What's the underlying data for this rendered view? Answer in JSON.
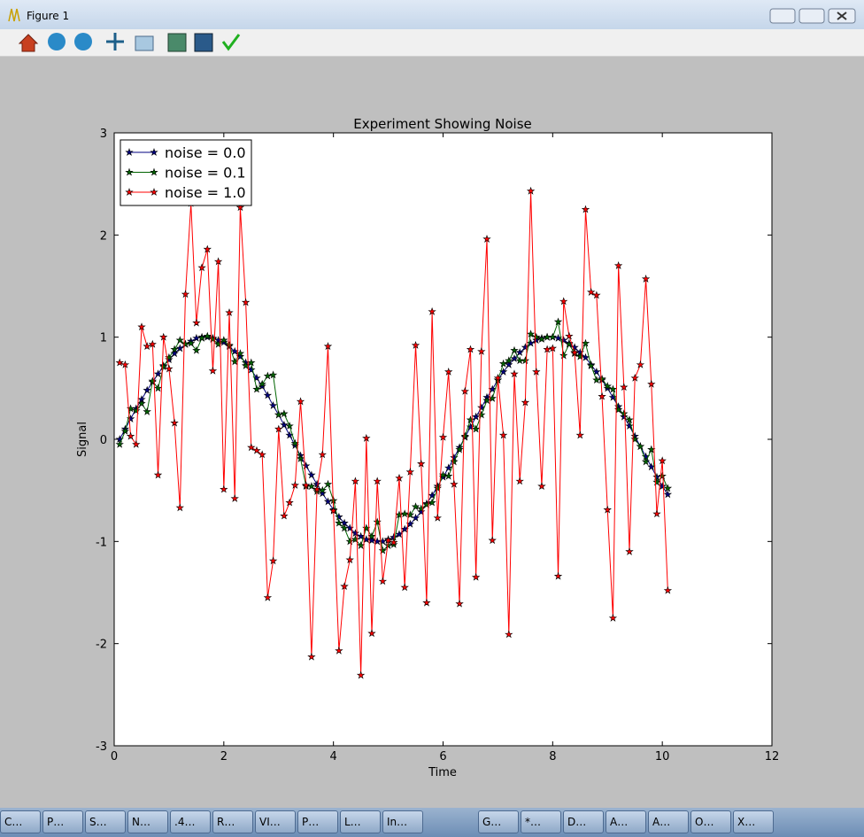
{
  "window": {
    "title": "Figure 1"
  },
  "chart_data": {
    "type": "line",
    "title": "Experiment Showing Noise",
    "x_label": "Time",
    "y_label": "Signal",
    "x": [
      0.1,
      0.2,
      0.3,
      0.4,
      0.5,
      0.6,
      0.7,
      0.8,
      0.9,
      1.0,
      1.1,
      1.2,
      1.3,
      1.4,
      1.5,
      1.6,
      1.7,
      1.8,
      1.9,
      2.0,
      2.1,
      2.2,
      2.3,
      2.4,
      2.5,
      2.6,
      2.7,
      2.8,
      2.9,
      3.0,
      3.1,
      3.2,
      3.3,
      3.4,
      3.5,
      3.6,
      3.7,
      3.8,
      3.9,
      4.0,
      4.1,
      4.2,
      4.3,
      4.4,
      4.5,
      4.6,
      4.7,
      4.8,
      4.9,
      5.0,
      5.1,
      5.2,
      5.3,
      5.4,
      5.5,
      5.6,
      5.7,
      5.8,
      5.9,
      6.0,
      6.1,
      6.2,
      6.3,
      6.4,
      6.5,
      6.6,
      6.7,
      6.8,
      6.9,
      7.0,
      7.1,
      7.2,
      7.3,
      7.4,
      7.5,
      7.6,
      7.7,
      7.8,
      7.9,
      8.0,
      8.1,
      8.2,
      8.3,
      8.4,
      8.5,
      8.6,
      8.7,
      8.8,
      8.9,
      9.0,
      9.1,
      9.2,
      9.3,
      9.4,
      9.5,
      9.6,
      9.7,
      9.8,
      9.9,
      10.0,
      10.1
    ],
    "series": [
      {
        "name": "noise = 0.0",
        "color": "#000080",
        "values": [
          0.0,
          0.1,
          0.2,
          0.3,
          0.39,
          0.48,
          0.56,
          0.64,
          0.72,
          0.78,
          0.84,
          0.89,
          0.93,
          0.96,
          0.99,
          1.0,
          1.0,
          0.99,
          0.97,
          0.95,
          0.91,
          0.86,
          0.81,
          0.75,
          0.68,
          0.6,
          0.52,
          0.43,
          0.33,
          0.24,
          0.14,
          0.04,
          -0.06,
          -0.16,
          -0.26,
          -0.35,
          -0.44,
          -0.53,
          -0.61,
          -0.69,
          -0.76,
          -0.82,
          -0.87,
          -0.92,
          -0.95,
          -0.98,
          -0.99,
          -1.0,
          -1.0,
          -0.98,
          -0.96,
          -0.93,
          -0.88,
          -0.83,
          -0.77,
          -0.71,
          -0.63,
          -0.55,
          -0.46,
          -0.37,
          -0.28,
          -0.18,
          -0.08,
          0.02,
          0.12,
          0.22,
          0.31,
          0.41,
          0.49,
          0.58,
          0.66,
          0.73,
          0.79,
          0.85,
          0.9,
          0.94,
          0.97,
          0.99,
          1.0,
          1.0,
          0.99,
          0.97,
          0.94,
          0.9,
          0.85,
          0.8,
          0.73,
          0.66,
          0.58,
          0.5,
          0.41,
          0.32,
          0.22,
          0.13,
          0.03,
          -0.07,
          -0.17,
          -0.27,
          -0.37,
          -0.46,
          -0.54
        ]
      },
      {
        "name": "noise = 0.1",
        "color": "#006400",
        "values": [
          -0.05,
          0.08,
          0.3,
          0.28,
          0.35,
          0.27,
          0.57,
          0.5,
          0.71,
          0.8,
          0.88,
          0.97,
          0.93,
          0.94,
          0.87,
          0.99,
          1.01,
          0.98,
          0.93,
          0.97,
          0.92,
          0.76,
          0.84,
          0.72,
          0.75,
          0.49,
          0.54,
          0.62,
          0.63,
          0.24,
          0.25,
          0.13,
          -0.04,
          -0.19,
          -0.46,
          -0.46,
          -0.51,
          -0.5,
          -0.44,
          -0.6,
          -0.82,
          -0.87,
          -1.0,
          -0.98,
          -1.04,
          -0.87,
          -0.95,
          -0.81,
          -1.09,
          -1.04,
          -1.03,
          -0.74,
          -0.73,
          -0.74,
          -0.66,
          -0.68,
          -0.64,
          -0.62,
          -0.48,
          -0.35,
          -0.36,
          -0.22,
          -0.1,
          0.03,
          0.19,
          0.1,
          0.24,
          0.38,
          0.4,
          0.58,
          0.74,
          0.77,
          0.87,
          0.77,
          0.77,
          1.03,
          1.0,
          0.98,
          1.0,
          1.0,
          1.15,
          0.82,
          0.93,
          0.84,
          0.81,
          0.94,
          0.72,
          0.58,
          0.59,
          0.52,
          0.49,
          0.29,
          0.25,
          0.19,
          0.0,
          -0.07,
          -0.22,
          -0.1,
          -0.42,
          -0.36,
          -0.48
        ]
      },
      {
        "name": "noise = 1.0",
        "color": "#ff0000",
        "values": [
          0.75,
          0.73,
          0.03,
          -0.05,
          1.1,
          0.91,
          0.93,
          -0.35,
          1.0,
          0.69,
          0.16,
          -0.67,
          1.42,
          2.31,
          1.14,
          1.68,
          1.86,
          0.67,
          1.74,
          -0.49,
          1.24,
          -0.58,
          2.27,
          1.34,
          -0.08,
          -0.11,
          -0.15,
          -1.55,
          -1.19,
          0.1,
          -0.75,
          -0.62,
          -0.45,
          0.37,
          -0.45,
          -2.13,
          -0.49,
          -0.15,
          0.91,
          -0.7,
          -2.07,
          -1.44,
          -1.18,
          -0.41,
          -2.31,
          0.01,
          -1.9,
          -0.41,
          -1.39,
          -0.99,
          -1.01,
          -0.38,
          -1.45,
          -0.32,
          0.92,
          -0.24,
          -1.6,
          1.25,
          -0.77,
          0.02,
          0.66,
          -0.44,
          -1.61,
          0.47,
          0.88,
          -1.35,
          0.86,
          1.96,
          -0.99,
          0.6,
          0.04,
          -1.91,
          0.64,
          -0.41,
          0.36,
          2.43,
          0.66,
          -0.46,
          0.88,
          0.89,
          -1.34,
          1.35,
          1.01,
          0.85,
          0.04,
          2.25,
          1.44,
          1.41,
          0.42,
          -0.69,
          -1.75,
          1.7,
          0.51,
          -1.1,
          0.6,
          0.73,
          1.57,
          0.54,
          -0.73,
          -0.21,
          -1.48
        ]
      }
    ],
    "xlim": [
      0,
      12
    ],
    "xticks": [
      0,
      2,
      4,
      6,
      8,
      10,
      12
    ],
    "ylim": [
      -3,
      3
    ],
    "yticks": [
      -3,
      -2,
      -1,
      0,
      1,
      2,
      3
    ],
    "legend": "upper left",
    "grid": false
  },
  "taskbar": {
    "items": [
      "C…",
      "P…",
      "S…",
      "N…",
      ".4…",
      "R…",
      "VI…",
      "P…",
      "L…",
      "In…",
      "G…",
      "*…",
      "D…",
      "A…",
      "A…",
      "O…",
      "X…"
    ]
  }
}
